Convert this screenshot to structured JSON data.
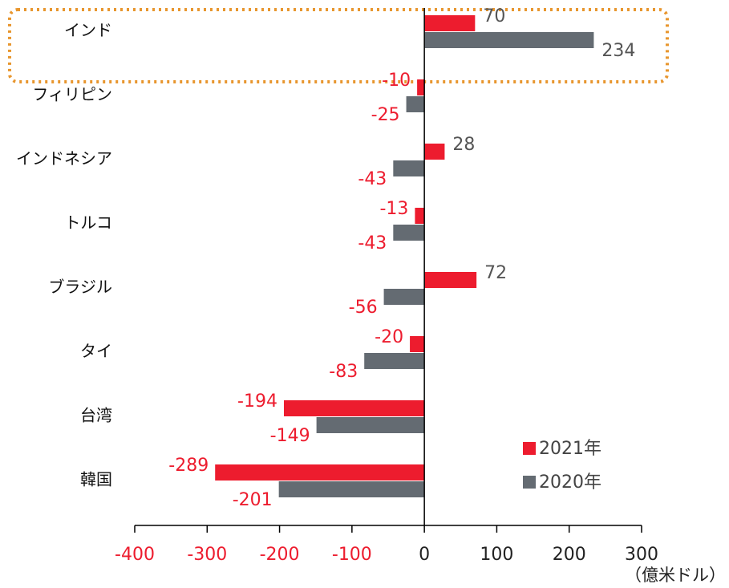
{
  "chart_data": {
    "type": "bar",
    "orientation": "horizontal",
    "categories": [
      "インド",
      "フィリピン",
      "インドネシア",
      "トルコ",
      "ブラジル",
      "タイ",
      "台湾",
      "韓国"
    ],
    "series": [
      {
        "name": "2021年",
        "color": "#ed1c2e",
        "values": [
          70,
          -10,
          28,
          -13,
          72,
          -20,
          -194,
          -289
        ]
      },
      {
        "name": "2020年",
        "color": "#646b72",
        "values": [
          234,
          -25,
          -43,
          -43,
          -56,
          -83,
          -149,
          -201
        ]
      }
    ],
    "xlim": [
      -400,
      300
    ],
    "xticks": [
      -400,
      -300,
      -200,
      -100,
      0,
      100,
      200,
      300
    ],
    "x_label": "（億米ドル）",
    "legend": "lower right",
    "negative_color": "#ed1c2e",
    "positive_color": "#555555"
  }
}
